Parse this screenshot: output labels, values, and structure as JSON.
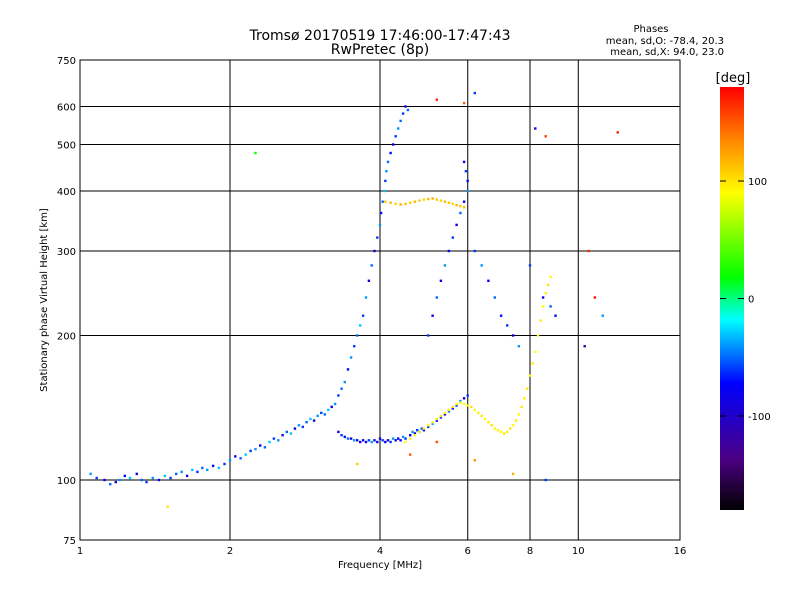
{
  "header": {
    "title_line1": "Tromsø 20170519 17:46:00-17:47:43",
    "title_line2": "RwPretec (8p)"
  },
  "stats": {
    "heading": "Phases",
    "line1": "mean, sd,O: -78.4, 20.3",
    "line2": "mean, sd,X:  94.0, 23.0"
  },
  "colorbar": {
    "label": "[deg]",
    "range": [
      -180,
      180
    ],
    "ticks": [
      {
        "value": 100,
        "label": "100"
      },
      {
        "value": 0,
        "label": "0"
      },
      {
        "value": -100,
        "label": "-100"
      }
    ]
  },
  "chart_data": {
    "type": "scatter",
    "title": "Tromsø 20170519 17:46:00-17:47:43",
    "subtitle": "RwPretec (8p)",
    "xlabel": "Frequency [MHz]",
    "ylabel": "Stationary phase Virtual Height [km]",
    "xscale": "log",
    "yscale": "log",
    "xlim": [
      1,
      16
    ],
    "ylim": [
      75,
      750
    ],
    "grid": true,
    "xticks": [
      {
        "value": 1,
        "label": "1"
      },
      {
        "value": 2,
        "label": "2"
      },
      {
        "value": 4,
        "label": "4"
      },
      {
        "value": 6,
        "label": "6"
      },
      {
        "value": 8,
        "label": "8"
      },
      {
        "value": 10,
        "label": "10"
      },
      {
        "value": 16,
        "label": "16"
      }
    ],
    "yticks": [
      {
        "value": 75,
        "label": "75"
      },
      {
        "value": 100,
        "label": "100"
      },
      {
        "value": 200,
        "label": "200"
      },
      {
        "value": 300,
        "label": "300"
      },
      {
        "value": 400,
        "label": "400"
      },
      {
        "value": 500,
        "label": "500"
      },
      {
        "value": 600,
        "label": "600"
      },
      {
        "value": 750,
        "label": "750"
      }
    ],
    "color_by": "phase [deg]",
    "points": [
      [
        1.05,
        103,
        -40
      ],
      [
        1.08,
        101,
        -60
      ],
      [
        1.12,
        100,
        -80
      ],
      [
        1.15,
        98,
        -50
      ],
      [
        1.18,
        99,
        -100
      ],
      [
        1.2,
        100,
        -40
      ],
      [
        1.23,
        102,
        -70
      ],
      [
        1.26,
        101,
        -30
      ],
      [
        1.3,
        103,
        -90
      ],
      [
        1.33,
        100,
        -50
      ],
      [
        1.36,
        99,
        -60
      ],
      [
        1.4,
        101,
        -40
      ],
      [
        1.44,
        100,
        -80
      ],
      [
        1.48,
        102,
        -30
      ],
      [
        1.52,
        101,
        -60
      ],
      [
        1.56,
        103,
        -50
      ],
      [
        1.6,
        104,
        -40
      ],
      [
        1.64,
        102,
        -90
      ],
      [
        1.68,
        105,
        -30
      ],
      [
        1.72,
        104,
        -60
      ],
      [
        1.76,
        106,
        -50
      ],
      [
        1.8,
        105,
        -40
      ],
      [
        1.85,
        107,
        -70
      ],
      [
        1.9,
        106,
        -30
      ],
      [
        1.95,
        108,
        -60
      ],
      [
        2.0,
        110,
        -40
      ],
      [
        2.05,
        112,
        -80
      ],
      [
        2.1,
        111,
        -50
      ],
      [
        2.15,
        113,
        -30
      ],
      [
        2.2,
        115,
        -60
      ],
      [
        2.25,
        116,
        -40
      ],
      [
        2.3,
        118,
        -90
      ],
      [
        2.35,
        117,
        -50
      ],
      [
        2.4,
        120,
        -30
      ],
      [
        2.45,
        122,
        -60
      ],
      [
        2.5,
        121,
        -40
      ],
      [
        2.55,
        124,
        -70
      ],
      [
        2.6,
        126,
        -50
      ],
      [
        2.65,
        125,
        -30
      ],
      [
        2.7,
        128,
        -80
      ],
      [
        2.75,
        130,
        -40
      ],
      [
        2.8,
        129,
        -60
      ],
      [
        2.85,
        132,
        -50
      ],
      [
        2.9,
        134,
        -30
      ],
      [
        2.95,
        133,
        -100
      ],
      [
        3.0,
        136,
        -40
      ],
      [
        3.05,
        138,
        -60
      ],
      [
        3.1,
        137,
        -50
      ],
      [
        3.15,
        140,
        -30
      ],
      [
        3.2,
        142,
        -80
      ],
      [
        3.25,
        144,
        -40
      ],
      [
        3.3,
        150,
        -60
      ],
      [
        3.3,
        126,
        -90
      ],
      [
        3.35,
        155,
        -50
      ],
      [
        3.35,
        124,
        -60
      ],
      [
        3.4,
        160,
        -40
      ],
      [
        3.4,
        123,
        -80
      ],
      [
        3.45,
        170,
        -70
      ],
      [
        3.45,
        122,
        -50
      ],
      [
        3.5,
        180,
        -40
      ],
      [
        3.5,
        122,
        -90
      ],
      [
        3.55,
        190,
        -60
      ],
      [
        3.55,
        121,
        -40
      ],
      [
        3.6,
        200,
        -50
      ],
      [
        3.6,
        121,
        -80
      ],
      [
        3.65,
        210,
        -30
      ],
      [
        3.65,
        120,
        -100
      ],
      [
        3.7,
        220,
        -60
      ],
      [
        3.7,
        121,
        -70
      ],
      [
        3.75,
        240,
        -40
      ],
      [
        3.75,
        120,
        -90
      ],
      [
        3.8,
        260,
        -80
      ],
      [
        3.8,
        121,
        -60
      ],
      [
        3.85,
        280,
        -50
      ],
      [
        3.85,
        120,
        -40
      ],
      [
        3.9,
        300,
        -90
      ],
      [
        3.9,
        121,
        -70
      ],
      [
        3.95,
        320,
        -60
      ],
      [
        3.95,
        120,
        -80
      ],
      [
        4.0,
        340,
        -40
      ],
      [
        4.0,
        122,
        -90
      ],
      [
        4.02,
        360,
        -70
      ],
      [
        4.05,
        380,
        -50
      ],
      [
        4.05,
        121,
        -60
      ],
      [
        4.08,
        400,
        -30
      ],
      [
        4.1,
        420,
        -60
      ],
      [
        4.1,
        120,
        -80
      ],
      [
        4.12,
        440,
        -40
      ],
      [
        4.15,
        460,
        -50
      ],
      [
        4.15,
        121,
        -90
      ],
      [
        4.2,
        480,
        -70
      ],
      [
        4.2,
        120,
        -60
      ],
      [
        4.25,
        500,
        -80
      ],
      [
        4.25,
        122,
        -40
      ],
      [
        4.3,
        520,
        -60
      ],
      [
        4.3,
        121,
        -90
      ],
      [
        4.35,
        540,
        -40
      ],
      [
        4.35,
        122,
        -70
      ],
      [
        4.4,
        560,
        -50
      ],
      [
        4.4,
        121,
        -80
      ],
      [
        4.45,
        580,
        -60
      ],
      [
        4.45,
        123,
        -40
      ],
      [
        4.5,
        600,
        -90
      ],
      [
        4.5,
        122,
        -60
      ],
      [
        4.55,
        590,
        -50
      ],
      [
        4.6,
        124,
        -70
      ],
      [
        4.65,
        126,
        -40
      ],
      [
        4.7,
        125,
        -80
      ],
      [
        4.75,
        127,
        -60
      ],
      [
        4.8,
        126,
        -90
      ],
      [
        4.85,
        128,
        -50
      ],
      [
        4.9,
        127,
        -70
      ],
      [
        5.0,
        129,
        -60
      ],
      [
        5.1,
        131,
        -40
      ],
      [
        5.2,
        133,
        -80
      ],
      [
        5.3,
        135,
        -60
      ],
      [
        5.4,
        137,
        -90
      ],
      [
        5.5,
        139,
        -50
      ],
      [
        5.6,
        141,
        -70
      ],
      [
        5.7,
        143,
        -60
      ],
      [
        5.8,
        146,
        -40
      ],
      [
        5.9,
        148,
        -80
      ],
      [
        6.0,
        150,
        -60
      ],
      [
        4.1,
        380,
        110
      ],
      [
        4.2,
        378,
        115
      ],
      [
        4.3,
        376,
        105
      ],
      [
        4.4,
        375,
        120
      ],
      [
        4.5,
        376,
        112
      ],
      [
        4.6,
        378,
        108
      ],
      [
        4.7,
        380,
        118
      ],
      [
        4.8,
        382,
        110
      ],
      [
        4.9,
        384,
        105
      ],
      [
        5.0,
        385,
        115
      ],
      [
        5.1,
        386,
        120
      ],
      [
        5.2,
        384,
        110
      ],
      [
        5.3,
        382,
        108
      ],
      [
        5.4,
        380,
        116
      ],
      [
        5.5,
        378,
        112
      ],
      [
        5.6,
        376,
        106
      ],
      [
        5.7,
        374,
        118
      ],
      [
        5.8,
        372,
        110
      ],
      [
        5.9,
        370,
        114
      ],
      [
        4.5,
        120,
        90
      ],
      [
        4.6,
        122,
        95
      ],
      [
        4.7,
        124,
        88
      ],
      [
        4.8,
        126,
        92
      ],
      [
        4.9,
        128,
        98
      ],
      [
        5.0,
        130,
        95
      ],
      [
        5.1,
        132,
        90
      ],
      [
        5.2,
        134,
        96
      ],
      [
        5.3,
        136,
        100
      ],
      [
        5.4,
        138,
        92
      ],
      [
        5.5,
        140,
        95
      ],
      [
        5.6,
        142,
        98
      ],
      [
        5.7,
        144,
        90
      ],
      [
        5.8,
        145,
        94
      ],
      [
        5.9,
        144,
        88
      ],
      [
        6.0,
        143,
        96
      ],
      [
        6.1,
        142,
        100
      ],
      [
        6.2,
        140,
        92
      ],
      [
        6.3,
        138,
        95
      ],
      [
        6.4,
        136,
        98
      ],
      [
        6.5,
        134,
        90
      ],
      [
        6.6,
        132,
        94
      ],
      [
        6.7,
        130,
        100
      ],
      [
        6.8,
        128,
        92
      ],
      [
        6.9,
        127,
        96
      ],
      [
        7.0,
        126,
        90
      ],
      [
        7.1,
        125,
        98
      ],
      [
        7.2,
        126,
        95
      ],
      [
        7.3,
        128,
        100
      ],
      [
        7.4,
        130,
        92
      ],
      [
        7.5,
        133,
        96
      ],
      [
        7.6,
        137,
        90
      ],
      [
        7.7,
        142,
        98
      ],
      [
        7.8,
        148,
        95
      ],
      [
        7.9,
        155,
        100
      ],
      [
        8.0,
        165,
        92
      ],
      [
        8.1,
        175,
        96
      ],
      [
        8.2,
        185,
        90
      ],
      [
        8.3,
        200,
        95
      ],
      [
        8.4,
        215,
        98
      ],
      [
        8.5,
        230,
        92
      ],
      [
        8.6,
        245,
        96
      ],
      [
        8.7,
        255,
        100
      ],
      [
        8.8,
        265,
        92
      ],
      [
        5.0,
        200,
        -60
      ],
      [
        5.1,
        220,
        -80
      ],
      [
        5.2,
        240,
        -50
      ],
      [
        5.3,
        260,
        -90
      ],
      [
        5.4,
        280,
        -40
      ],
      [
        5.5,
        300,
        -70
      ],
      [
        5.6,
        320,
        -60
      ],
      [
        5.7,
        340,
        -80
      ],
      [
        5.8,
        360,
        -50
      ],
      [
        5.9,
        380,
        -90
      ],
      [
        6.0,
        400,
        -40
      ],
      [
        6.0,
        420,
        -70
      ],
      [
        5.95,
        440,
        -60
      ],
      [
        5.9,
        460,
        -80
      ],
      [
        6.2,
        300,
        -60
      ],
      [
        6.4,
        280,
        -40
      ],
      [
        6.6,
        260,
        -80
      ],
      [
        6.8,
        240,
        -50
      ],
      [
        7.0,
        220,
        -70
      ],
      [
        7.2,
        210,
        -60
      ],
      [
        7.4,
        200,
        -90
      ],
      [
        7.6,
        190,
        -40
      ],
      [
        8.0,
        280,
        -60
      ],
      [
        8.5,
        240,
        -80
      ],
      [
        8.8,
        230,
        -50
      ],
      [
        9.0,
        220,
        -70
      ],
      [
        8.2,
        540,
        -80
      ],
      [
        8.6,
        520,
        160
      ],
      [
        12.0,
        530,
        170
      ],
      [
        6.2,
        640,
        -60
      ],
      [
        5.9,
        610,
        150
      ],
      [
        5.2,
        620,
        170
      ],
      [
        10.5,
        300,
        165
      ],
      [
        10.8,
        240,
        175
      ],
      [
        11.2,
        220,
        -40
      ],
      [
        10.3,
        190,
        -120
      ],
      [
        2.25,
        480,
        20
      ],
      [
        1.5,
        88,
        100
      ],
      [
        3.6,
        108,
        110
      ],
      [
        4.6,
        113,
        150
      ],
      [
        5.2,
        120,
        155
      ],
      [
        6.2,
        110,
        130
      ],
      [
        7.4,
        103,
        120
      ],
      [
        8.6,
        100,
        -60
      ]
    ]
  }
}
